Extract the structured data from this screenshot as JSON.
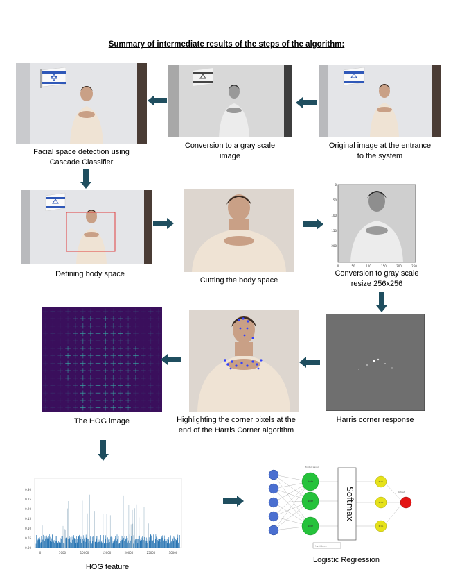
{
  "title": "Summary of intermediate results of the steps of the algorithm:",
  "captions": {
    "facial": "Facial space detection using Cascade Classifier",
    "gray": "Conversion to a gray scale image",
    "original": "Original image at the entrance to the system",
    "body": "Defining body space",
    "cut": "Cutting the body space",
    "resize": "Conversion to gray scale resize 256x256",
    "hog_image": "The HOG image",
    "highlight": "Highlighting the corner pixels at the end of the Harris Corner algorithm",
    "harris": "Harris corner response",
    "hog_feature": "HOG feature",
    "logreg": "Logistic Regression"
  },
  "resize_plot": {
    "y_ticks": [
      "0",
      "50",
      "100",
      "150",
      "200"
    ],
    "x_ticks": [
      "0",
      "50",
      "100",
      "150",
      "200",
      "250"
    ]
  },
  "hog_chart": {
    "y_ticks": [
      "0.00",
      "0.05",
      "0.10",
      "0.15",
      "0.20",
      "0.25",
      "0.30"
    ],
    "x_ticks": [
      "0",
      "5000",
      "10000",
      "15000",
      "20000",
      "25000",
      "30000"
    ]
  },
  "network": {
    "softmax": "Softmax",
    "hidden_label": "Hidden Layer",
    "input_label": "Input Layer",
    "output_label": "Output",
    "hidden_nodes": [
      "Node",
      "Node",
      "Node"
    ],
    "softmax_outputs": [
      "Prob",
      "Prob",
      "Prob"
    ],
    "input_nodes": [
      "",
      "",
      "",
      "",
      ""
    ]
  },
  "colors": {
    "arrow": "#1f4e5f",
    "wall": "#e7e8ea",
    "sweater": "#efe3d4",
    "skin": "#c9a086",
    "hair": "#3a2b22",
    "hog_bg": "#3a0f5c",
    "hog_cell": "#37b4a8",
    "hist_bar": "#1f6fb0",
    "node_input": "#4a6fd0",
    "node_hidden": "#25c23b",
    "node_output": "#e6e21a",
    "node_final": "#e31414",
    "rect_red": "#e04040",
    "corner_blue": "#3040ff"
  }
}
